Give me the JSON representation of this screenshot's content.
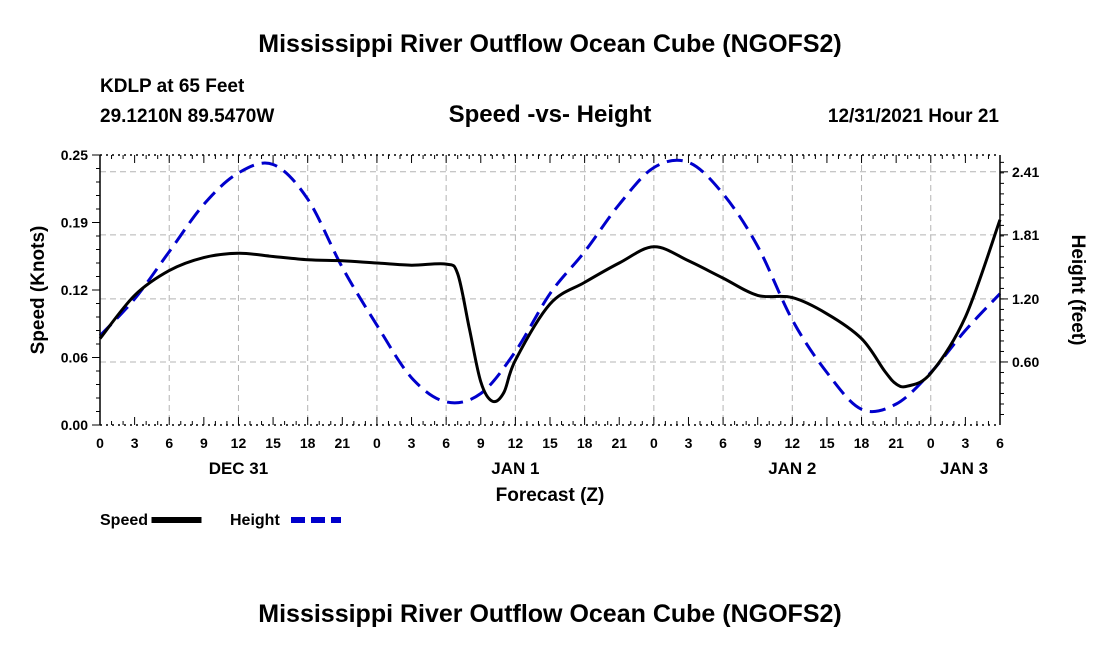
{
  "page": {
    "title_top": "Mississippi River Outflow Ocean Cube (NGOFS2)",
    "title_bottom": "Mississippi River Outflow Ocean Cube (NGOFS2)",
    "station": "KDLP at 65 Feet",
    "coords": "29.1210N  89.5470W",
    "subtitle": "Speed -vs- Height",
    "datetime": "12/31/2021 Hour 21"
  },
  "chart_data": {
    "type": "line",
    "title": "Speed -vs- Height",
    "xlabel": "Forecast (Z)",
    "ylabel": "Speed (Knots)",
    "y2label": "Height (feet)",
    "x_range_hours": [
      0,
      78
    ],
    "ylim": [
      0,
      0.25
    ],
    "y2lim": [
      0,
      2.57
    ],
    "x_ticks": [
      {
        "h": 0,
        "label": "0"
      },
      {
        "h": 3,
        "label": "3"
      },
      {
        "h": 6,
        "label": "6"
      },
      {
        "h": 9,
        "label": "9"
      },
      {
        "h": 12,
        "label": "12"
      },
      {
        "h": 15,
        "label": "15"
      },
      {
        "h": 18,
        "label": "18"
      },
      {
        "h": 21,
        "label": "21"
      },
      {
        "h": 24,
        "label": "0"
      },
      {
        "h": 27,
        "label": "3"
      },
      {
        "h": 30,
        "label": "6"
      },
      {
        "h": 33,
        "label": "9"
      },
      {
        "h": 36,
        "label": "12"
      },
      {
        "h": 39,
        "label": "15"
      },
      {
        "h": 42,
        "label": "18"
      },
      {
        "h": 45,
        "label": "21"
      },
      {
        "h": 48,
        "label": "0"
      },
      {
        "h": 51,
        "label": "3"
      },
      {
        "h": 54,
        "label": "6"
      },
      {
        "h": 57,
        "label": "9"
      },
      {
        "h": 60,
        "label": "12"
      },
      {
        "h": 63,
        "label": "15"
      },
      {
        "h": 66,
        "label": "18"
      },
      {
        "h": 69,
        "label": "21"
      },
      {
        "h": 72,
        "label": "0"
      },
      {
        "h": 75,
        "label": "3"
      },
      {
        "h": 78,
        "label": "6"
      }
    ],
    "day_labels": [
      {
        "h": 12,
        "label": "DEC 31"
      },
      {
        "h": 36,
        "label": "JAN 1"
      },
      {
        "h": 60,
        "label": "JAN 2"
      },
      {
        "h": 78,
        "label": "JAN 3"
      }
    ],
    "y_ticks": [
      {
        "v": 0.0,
        "label": "0.00"
      },
      {
        "v": 0.0625,
        "label": "0.06"
      },
      {
        "v": 0.125,
        "label": "0.12"
      },
      {
        "v": 0.1875,
        "label": "0.19"
      },
      {
        "v": 0.25,
        "label": "0.25"
      }
    ],
    "y2_ticks": [
      {
        "v": 0.6,
        "label": "0.60"
      },
      {
        "v": 1.2,
        "label": "1.20"
      },
      {
        "v": 1.81,
        "label": "1.81"
      },
      {
        "v": 2.41,
        "label": "2.41"
      }
    ],
    "series": [
      {
        "name": "Speed",
        "axis": "left",
        "color": "#000000",
        "dash": "solid",
        "x": [
          0,
          3,
          6,
          9,
          12,
          15,
          18,
          21,
          24,
          27,
          30,
          31,
          32,
          33,
          34,
          35,
          36,
          39,
          42,
          45,
          48,
          51,
          54,
          57,
          60,
          63,
          66,
          68,
          69,
          70,
          72,
          75,
          78
        ],
        "y": [
          0.08,
          0.12,
          0.143,
          0.155,
          0.159,
          0.156,
          0.153,
          0.152,
          0.15,
          0.148,
          0.149,
          0.14,
          0.09,
          0.04,
          0.022,
          0.03,
          0.06,
          0.112,
          0.132,
          0.15,
          0.165,
          0.152,
          0.136,
          0.12,
          0.118,
          0.103,
          0.08,
          0.05,
          0.038,
          0.036,
          0.048,
          0.1,
          0.19
        ]
      },
      {
        "name": "Height",
        "axis": "right",
        "color": "#0000cc",
        "dash": "dashed",
        "x": [
          0,
          3,
          6,
          9,
          12,
          15,
          18,
          21,
          24,
          27,
          30,
          33,
          36,
          39,
          42,
          45,
          48,
          51,
          54,
          57,
          60,
          63,
          66,
          69,
          72,
          75,
          78
        ],
        "y": [
          0.85,
          1.2,
          1.65,
          2.1,
          2.4,
          2.48,
          2.15,
          1.5,
          0.95,
          0.45,
          0.22,
          0.3,
          0.7,
          1.25,
          1.65,
          2.1,
          2.45,
          2.5,
          2.2,
          1.7,
          1.0,
          0.5,
          0.15,
          0.2,
          0.5,
          0.9,
          1.25
        ]
      }
    ],
    "legend": [
      {
        "label": "Speed",
        "color": "#000000",
        "dash": "solid"
      },
      {
        "label": "Height",
        "color": "#0000cc",
        "dash": "dashed"
      }
    ],
    "grid": true,
    "legend_position": "bottom-left"
  }
}
